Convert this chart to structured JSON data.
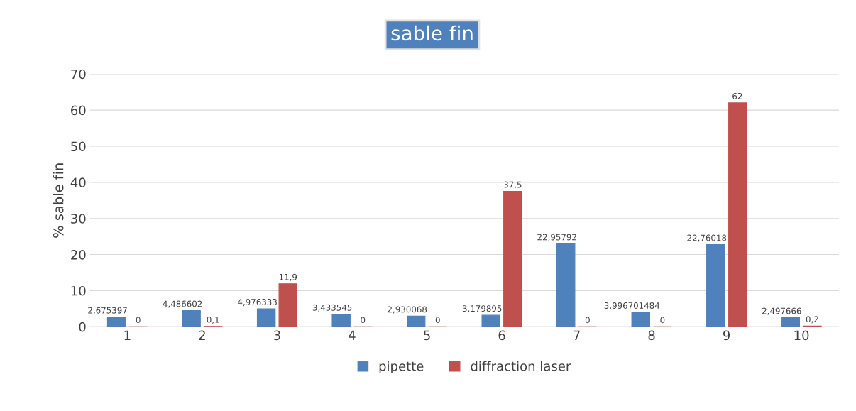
{
  "chart_data": {
    "type": "bar",
    "title": "sable fin",
    "ylabel": "% sable fin",
    "categories": [
      "1",
      "2",
      "3",
      "4",
      "5",
      "6",
      "7",
      "8",
      "9",
      "10"
    ],
    "series": [
      {
        "name": "pipette",
        "color": "#4f81bd",
        "values": [
          2.675397,
          4.486602,
          4.976333,
          3.433545,
          2.930068,
          3.179895,
          22.95792,
          3.996701484,
          22.76018,
          2.497666
        ],
        "value_labels": [
          "2,675397",
          "4,486602",
          "4,976333",
          "3,433545",
          "2,930068",
          "3,179895",
          "22,95792",
          "3,996701484",
          "22,76018",
          "2,497666"
        ]
      },
      {
        "name": "diffraction laser",
        "color": "#c0504d",
        "values": [
          0,
          0.1,
          11.9,
          0,
          0,
          37.5,
          0,
          0,
          62,
          0.2
        ],
        "value_labels": [
          "0",
          "0,1",
          "11,9",
          "0",
          "0",
          "37,5",
          "0",
          "0",
          "62",
          "0,2"
        ]
      }
    ],
    "ylim": [
      0,
      70
    ],
    "yticks": [
      0,
      10,
      20,
      30,
      40,
      50,
      60,
      70
    ],
    "grid": "y",
    "legend": "bottom"
  }
}
